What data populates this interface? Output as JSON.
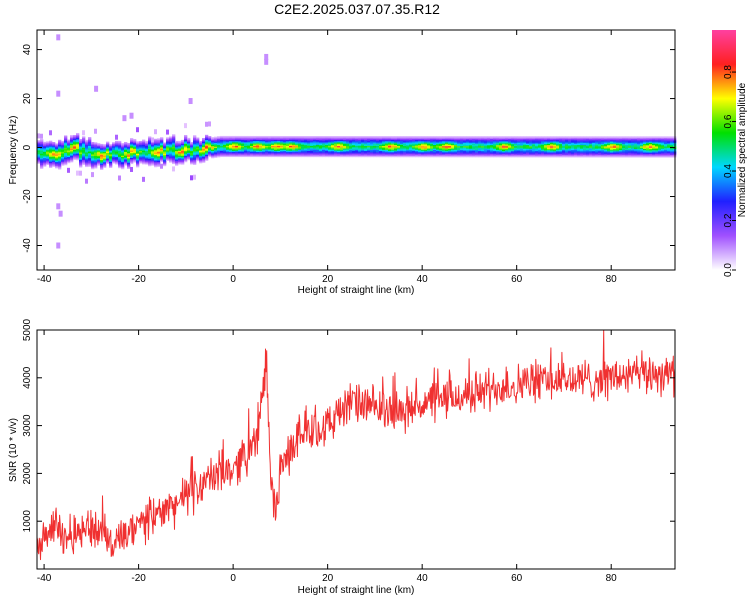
{
  "title": "C2E2.2025.037.07.35.R12",
  "chart_data": [
    {
      "type": "heatmap",
      "xlabel": "Height of straight line (km)",
      "ylabel": "Frequency (Hz)",
      "xlim": [
        -41.5,
        93.5
      ],
      "ylim": [
        -50,
        48
      ],
      "xticks": [
        -40,
        -20,
        0,
        20,
        40,
        60,
        80
      ],
      "xtick_labels": [
        "-40",
        "-20",
        "0",
        "20",
        "40",
        "60",
        "80"
      ],
      "yticks": [
        -40,
        -20,
        0,
        20,
        40
      ],
      "ytick_labels": [
        "-40",
        "-20",
        "0",
        "20",
        "40"
      ],
      "colorbar": {
        "label": "Normalized spectral amplitude",
        "range": [
          0,
          0.97
        ],
        "ticks": [
          0,
          0.2,
          0.4,
          0.6,
          0.8
        ],
        "tick_labels": [
          "0.0",
          "0.2",
          "0.4",
          "0.6",
          "0.8"
        ],
        "colors": [
          "#ffffff",
          "#a050ff",
          "#2020ff",
          "#00d8ff",
          "#00e000",
          "#ffff00",
          "#ff2020",
          "#ff40a0"
        ]
      },
      "band": {
        "center_freq_hz": [
          [
            -41.5,
            -2
          ],
          [
            -38,
            -3
          ],
          [
            -34,
            0
          ],
          [
            -30,
            -3
          ],
          [
            -20,
            -2
          ],
          [
            -8,
            -1
          ],
          [
            -3,
            0.5
          ],
          [
            93.5,
            0.3
          ]
        ],
        "half_width_hz": 4
      },
      "band_hotspots_km": [
        -38,
        -34,
        -28,
        -22,
        -16,
        -11,
        -6,
        0,
        5,
        9,
        12,
        22,
        33,
        40,
        45,
        57,
        67,
        80,
        88
      ],
      "outlier_specks": [
        {
          "x": -37,
          "y": 22
        },
        {
          "x": -37,
          "y": 45
        },
        {
          "x": -29,
          "y": 24
        },
        {
          "x": -23,
          "y": 12
        },
        {
          "x": -21.5,
          "y": 13
        },
        {
          "x": -9,
          "y": 19
        },
        {
          "x": 7,
          "y": 35
        },
        {
          "x": 7,
          "y": 37
        },
        {
          "x": -37,
          "y": -24
        },
        {
          "x": -36.5,
          "y": -27
        },
        {
          "x": -37,
          "y": -40
        }
      ]
    },
    {
      "type": "line",
      "xlabel": "Height of straight line (km)",
      "ylabel": "SNR (10 * v/v)",
      "xlim": [
        -41.5,
        93.5
      ],
      "ylim": [
        0,
        5000
      ],
      "xticks": [
        -40,
        -20,
        0,
        20,
        40,
        60,
        80
      ],
      "xtick_labels": [
        "-40",
        "-20",
        "0",
        "20",
        "40",
        "60",
        "80"
      ],
      "yticks": [
        1000,
        2000,
        3000,
        4000,
        5000
      ],
      "ytick_labels": [
        "1000",
        "2000",
        "3000",
        "4000",
        "5000"
      ],
      "series": [
        {
          "color": "#f03030",
          "trend_x": [
            -41.5,
            -38,
            -35,
            -30,
            -25,
            -20,
            -15,
            -10,
            -5,
            0,
            5,
            6,
            7,
            8,
            9,
            10,
            12,
            15,
            20,
            25,
            30,
            35,
            40,
            45,
            50,
            55,
            60,
            65,
            70,
            75,
            80,
            85,
            90,
            93.5
          ],
          "trend_y": [
            600,
            900,
            700,
            900,
            500,
            900,
            1200,
            1500,
            1900,
            2100,
            2700,
            3400,
            4400,
            1800,
            1200,
            2000,
            2500,
            2900,
            3000,
            3500,
            3350,
            3300,
            3450,
            3550,
            3650,
            3800,
            3850,
            3950,
            3950,
            3950,
            4000,
            4050,
            4100,
            4100
          ],
          "noise_amplitude": 450
        }
      ]
    }
  ]
}
